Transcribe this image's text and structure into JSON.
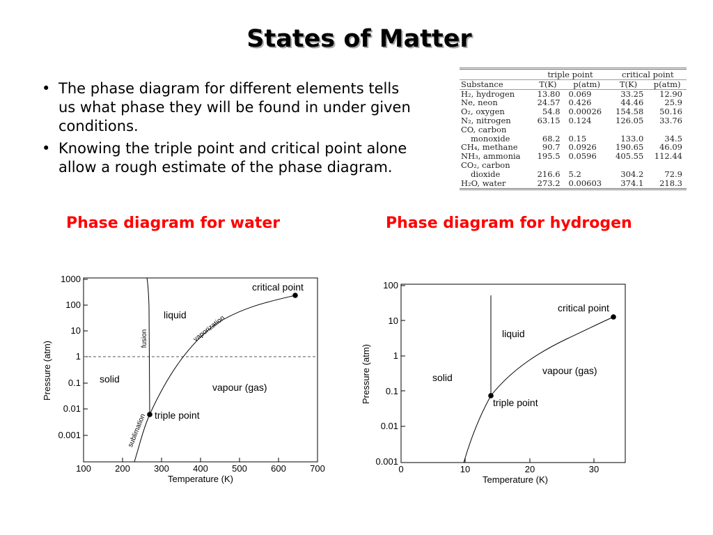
{
  "title": "States of Matter",
  "bullets": [
    "The phase diagram for different elements tells us what phase they will be found in under given conditions.",
    "Knowing the triple point and critical point alone allow a rough estimate of the phase diagram."
  ],
  "bullet_glyph": "•",
  "captions": {
    "water": "Phase diagram for water",
    "hydrogen": "Phase diagram for hydrogen"
  },
  "colors": {
    "caption": "#ff0000",
    "title_shadow": "#a9a9a9"
  },
  "table": {
    "group_headers": [
      "triple point",
      "critical point"
    ],
    "columns": [
      "Substance",
      "T(K)",
      "p(atm)",
      "T(K)",
      "p(atm)"
    ],
    "rows": [
      {
        "name": "H₂, hydrogen",
        "t1": "13.80",
        "p1": "0.069",
        "t2": "33.25",
        "p2": "12.90"
      },
      {
        "name": "Ne, neon",
        "t1": "24.57",
        "p1": "0.426",
        "t2": "44.46",
        "p2": "25.9"
      },
      {
        "name": "O₂, oxygen",
        "t1": "54.8",
        "p1": "0.00026",
        "t2": "154.58",
        "p2": "50.16"
      },
      {
        "name": "N₂, nitrogen",
        "t1": "63.15",
        "p1": "0.124",
        "t2": "126.05",
        "p2": "33.76"
      },
      {
        "name": "CO, carbon",
        "t1": "",
        "p1": "",
        "t2": "",
        "p2": ""
      },
      {
        "name": "monoxide",
        "sub": true,
        "t1": "68.2",
        "p1": "0.15",
        "t2": "133.0",
        "p2": "34.5"
      },
      {
        "name": "CH₄, methane",
        "t1": "90.7",
        "p1": "0.0926",
        "t2": "190.65",
        "p2": "46.09"
      },
      {
        "name": "NH₃, ammonia",
        "t1": "195.5",
        "p1": "0.0596",
        "t2": "405.55",
        "p2": "112.44"
      },
      {
        "name": "CO₂, carbon",
        "t1": "",
        "p1": "",
        "t2": "",
        "p2": ""
      },
      {
        "name": "dioxide",
        "sub": true,
        "t1": "216.6",
        "p1": "5.2",
        "t2": "304.2",
        "p2": "72.9"
      },
      {
        "name": "H₂O, water",
        "t1": "273.2",
        "p1": "0.00603",
        "t2": "374.1",
        "p2": "218.3"
      }
    ]
  },
  "water_diagram": {
    "xlabel": "Temperature (K)",
    "ylabel": "Pressure (atm)",
    "xticks": [
      "100",
      "200",
      "300",
      "400",
      "500",
      "600",
      "700"
    ],
    "yticks": [
      "1000",
      "100",
      "10",
      "1",
      "0.1",
      "0.01",
      "0.001"
    ],
    "regions": {
      "solid": "solid",
      "liquid": "liquid",
      "vapour": "vapour (gas)"
    },
    "curves": {
      "fusion": "fusion",
      "vaporization": "vaporization",
      "sublimation": "sublimation"
    },
    "points": {
      "triple": "triple point",
      "critical": "critical point"
    }
  },
  "hydrogen_diagram": {
    "xlabel": "Temperature (K)",
    "ylabel": "Pressure (atm)",
    "xticks": [
      "0",
      "10",
      "20",
      "30"
    ],
    "yticks": [
      "100",
      "10",
      "1",
      "0.1",
      "0.01",
      "0.001"
    ],
    "regions": {
      "solid": "solid",
      "liquid": "liquid",
      "vapour": "vapour (gas)"
    },
    "points": {
      "triple": "triple point",
      "critical": "critical point"
    }
  }
}
